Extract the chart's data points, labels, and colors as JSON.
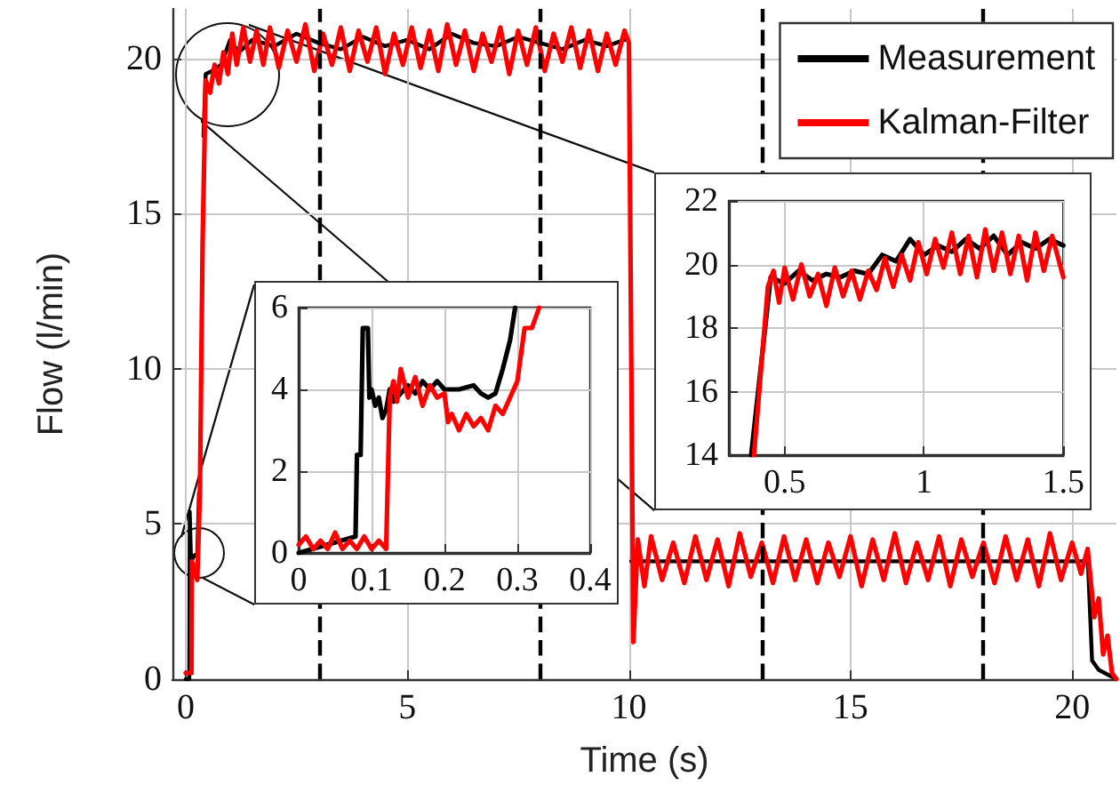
{
  "chart_data": [
    {
      "type": "line",
      "xlabel": "Time (s)",
      "ylabel": "Flow (l/min)",
      "xlim": [
        -0.3,
        21
      ],
      "xticks": [
        0,
        5,
        10,
        15,
        20
      ],
      "ylim": [
        0,
        21.6
      ],
      "yticks": [
        0,
        5,
        10,
        15,
        20
      ],
      "grid": true,
      "legend": "top right",
      "line_style": "solid",
      "marker": "none",
      "ref_lines": [
        {
          "axis": "x",
          "value": 3,
          "color": "#000000",
          "line_style": "dashed"
        },
        {
          "axis": "x",
          "value": 8,
          "color": "#000000",
          "line_style": "dashed"
        },
        {
          "axis": "x",
          "value": 13,
          "color": "#000000",
          "line_style": "dashed"
        },
        {
          "axis": "x",
          "value": 18,
          "color": "#000000",
          "line_style": "dashed"
        }
      ],
      "series": [
        {
          "name": "Measurement",
          "color": "#000000",
          "x": [
            0,
            0.08,
            0.09,
            0.12,
            0.2,
            0.26,
            0.3,
            0.35,
            0.4,
            0.45,
            0.6,
            0.8,
            1.0,
            1.2,
            1.5,
            2,
            2.5,
            3,
            3.5,
            4,
            4.5,
            5,
            5.5,
            6,
            6.5,
            7,
            7.5,
            8,
            8.5,
            9,
            9.5,
            9.9,
            9.95,
            10.0,
            10.05,
            12,
            14,
            16,
            18,
            20.3,
            20.35,
            20.45,
            20.6,
            21
          ],
          "values": [
            0,
            0,
            5.4,
            3.8,
            4,
            4,
            6,
            null,
            17.5,
            19.5,
            19.6,
            19.8,
            20.6,
            20.2,
            20.6,
            20.4,
            20.8,
            20.5,
            20.3,
            20.7,
            20.4,
            20.6,
            20.3,
            20.8,
            20.5,
            20.4,
            20.7,
            20.5,
            20.3,
            20.6,
            20.4,
            20.6,
            null,
            null,
            3.8,
            3.8,
            3.8,
            3.8,
            3.8,
            3.8,
            4.0,
            0.6,
            0.3,
            0
          ]
        },
        {
          "name": "Kalman-Filter",
          "color": "#ff0000",
          "x": [
            0,
            0.13,
            0.14,
            0.26,
            0.32,
            0.38,
            0.45,
            0.55,
            0.65,
            0.75,
            0.85,
            0.95,
            1.05,
            1.15,
            1.3,
            1.45,
            1.6,
            1.75,
            1.9,
            2.1,
            2.3,
            2.5,
            2.7,
            2.9,
            3.1,
            3.3,
            3.5,
            3.7,
            3.9,
            4.1,
            4.3,
            4.5,
            4.7,
            4.9,
            5.1,
            5.3,
            5.5,
            5.7,
            5.9,
            6.1,
            6.3,
            6.5,
            6.7,
            6.9,
            7.1,
            7.3,
            7.5,
            7.7,
            7.9,
            8.1,
            8.3,
            8.5,
            8.7,
            8.9,
            9.1,
            9.3,
            9.5,
            9.7,
            9.9,
            10.0,
            10.1,
            10.2,
            10.35,
            10.5,
            10.75,
            11,
            11.25,
            11.5,
            11.75,
            12,
            12.25,
            12.5,
            12.75,
            13,
            13.25,
            13.5,
            13.75,
            14,
            14.25,
            14.5,
            14.75,
            15,
            15.25,
            15.5,
            15.75,
            16,
            16.25,
            16.5,
            16.75,
            17,
            17.25,
            17.5,
            17.75,
            18,
            18.25,
            18.5,
            18.75,
            19,
            19.25,
            19.5,
            19.75,
            20,
            20.2,
            20.35,
            20.5,
            20.6,
            20.7,
            20.8,
            20.9,
            21
          ],
          "values": [
            0.2,
            0.2,
            3.8,
            3.2,
            6,
            14,
            19.3,
            18.9,
            19.8,
            19.2,
            20.2,
            19.5,
            20.8,
            19.8,
            21.0,
            19.9,
            20.9,
            19.8,
            21.0,
            19.7,
            20.9,
            19.9,
            21.1,
            19.6,
            20.8,
            19.8,
            21.0,
            19.6,
            20.9,
            19.9,
            21.0,
            19.5,
            20.8,
            19.8,
            21.0,
            19.7,
            20.9,
            19.6,
            21.1,
            19.8,
            20.9,
            19.6,
            20.8,
            19.9,
            21.0,
            19.5,
            20.9,
            19.8,
            21.0,
            19.6,
            20.8,
            19.9,
            21.0,
            19.7,
            20.9,
            19.6,
            20.8,
            19.8,
            20.9,
            20.5,
            1.2,
            4.5,
            3.0,
            4.6,
            3.2,
            4.4,
            3.1,
            4.6,
            3.2,
            4.5,
            3.0,
            4.7,
            3.3,
            4.4,
            3.1,
            4.6,
            3.2,
            4.5,
            3.1,
            4.4,
            3.3,
            4.6,
            3.0,
            4.5,
            3.2,
            4.7,
            3.1,
            4.4,
            3.2,
            4.6,
            3.0,
            4.5,
            3.3,
            4.4,
            3.1,
            4.6,
            3.2,
            4.5,
            3.0,
            4.7,
            3.2,
            4.4,
            3.4,
            4.2,
            2.0,
            2.6,
            0.8,
            1.4,
            0.2,
            0
          ]
        }
      ]
    },
    {
      "type": "line",
      "xlim": [
        0,
        0.4
      ],
      "xticks": [
        0,
        0.1,
        0.2,
        0.3,
        0.4
      ],
      "ylim": [
        0,
        6
      ],
      "yticks": [
        0,
        2,
        4,
        6
      ],
      "grid": true,
      "line_style": "solid",
      "marker": "none",
      "series": [
        {
          "color": "#000000",
          "x": [
            0,
            0.078,
            0.08,
            0.085,
            0.088,
            0.095,
            0.097,
            0.1,
            0.105,
            0.11,
            0.115,
            0.12,
            0.125,
            0.13,
            0.14,
            0.15,
            0.16,
            0.17,
            0.18,
            0.19,
            0.2,
            0.22,
            0.24,
            0.25,
            0.26,
            0.27,
            0.28,
            0.29,
            0.297
          ],
          "values": [
            0,
            0.4,
            2.4,
            2.4,
            5.5,
            5.5,
            3.8,
            4.0,
            3.6,
            3.8,
            3.3,
            3.5,
            4.0,
            3.7,
            3.9,
            4.1,
            3.9,
            4.2,
            4.0,
            4.2,
            4.0,
            4.0,
            4.1,
            3.9,
            3.8,
            3.9,
            4.5,
            5.2,
            6.0
          ]
        },
        {
          "color": "#ff0000",
          "x": [
            0,
            0.01,
            0.02,
            0.03,
            0.04,
            0.05,
            0.06,
            0.07,
            0.08,
            0.09,
            0.1,
            0.11,
            0.12,
            0.125,
            0.13,
            0.135,
            0.14,
            0.15,
            0.16,
            0.17,
            0.18,
            0.19,
            0.2,
            0.205,
            0.21,
            0.22,
            0.23,
            0.24,
            0.25,
            0.26,
            0.27,
            0.28,
            0.29,
            0.3,
            0.31,
            0.32,
            0.33
          ],
          "values": [
            0.2,
            0.4,
            0.1,
            0.3,
            0.1,
            0.5,
            0.1,
            0.3,
            0.1,
            0.4,
            0.1,
            0.3,
            0.1,
            3.8,
            4.2,
            3.7,
            4.5,
            3.8,
            4.3,
            3.6,
            4.1,
            3.8,
            3.9,
            3.2,
            3.4,
            3.0,
            3.4,
            3.1,
            3.3,
            3.0,
            3.6,
            3.4,
            3.8,
            4.2,
            5.5,
            5.5,
            6.0
          ]
        }
      ]
    },
    {
      "type": "line",
      "xlim": [
        0.3,
        1.5
      ],
      "xticks": [
        0.5,
        1,
        1.5
      ],
      "ylim": [
        14,
        22
      ],
      "yticks": [
        14,
        16,
        18,
        20,
        22
      ],
      "grid": true,
      "line_style": "solid",
      "marker": "none",
      "series": [
        {
          "color": "#000000",
          "x": [
            0.38,
            0.45,
            0.5,
            0.55,
            0.6,
            0.65,
            0.7,
            0.75,
            0.8,
            0.85,
            0.9,
            0.95,
            1.0,
            1.05,
            1.1,
            1.15,
            1.2,
            1.25,
            1.3,
            1.35,
            1.4,
            1.45,
            1.5
          ],
          "values": [
            14,
            19.6,
            19.4,
            19.8,
            19.5,
            19.7,
            19.6,
            19.8,
            19.7,
            20.3,
            20.1,
            20.8,
            20.3,
            20.6,
            20.4,
            20.8,
            20.5,
            20.9,
            20.3,
            20.7,
            20.5,
            20.8,
            20.6
          ]
        },
        {
          "color": "#ff0000",
          "x": [
            0.39,
            0.44,
            0.46,
            0.48,
            0.5,
            0.53,
            0.56,
            0.59,
            0.62,
            0.65,
            0.68,
            0.71,
            0.74,
            0.77,
            0.8,
            0.83,
            0.86,
            0.89,
            0.92,
            0.95,
            0.98,
            1.01,
            1.04,
            1.07,
            1.1,
            1.13,
            1.16,
            1.19,
            1.22,
            1.25,
            1.28,
            1.31,
            1.34,
            1.37,
            1.4,
            1.43,
            1.46,
            1.5
          ],
          "values": [
            14,
            19.3,
            19.8,
            18.8,
            19.9,
            18.9,
            20.0,
            19.0,
            19.7,
            18.7,
            19.9,
            19.0,
            19.8,
            18.9,
            19.8,
            19.2,
            20.2,
            19.3,
            20.3,
            19.5,
            20.7,
            19.7,
            20.8,
            19.9,
            21.0,
            19.7,
            20.9,
            19.6,
            21.1,
            19.8,
            21.0,
            19.7,
            20.9,
            19.5,
            21.0,
            19.8,
            20.9,
            19.6
          ]
        }
      ]
    }
  ]
}
